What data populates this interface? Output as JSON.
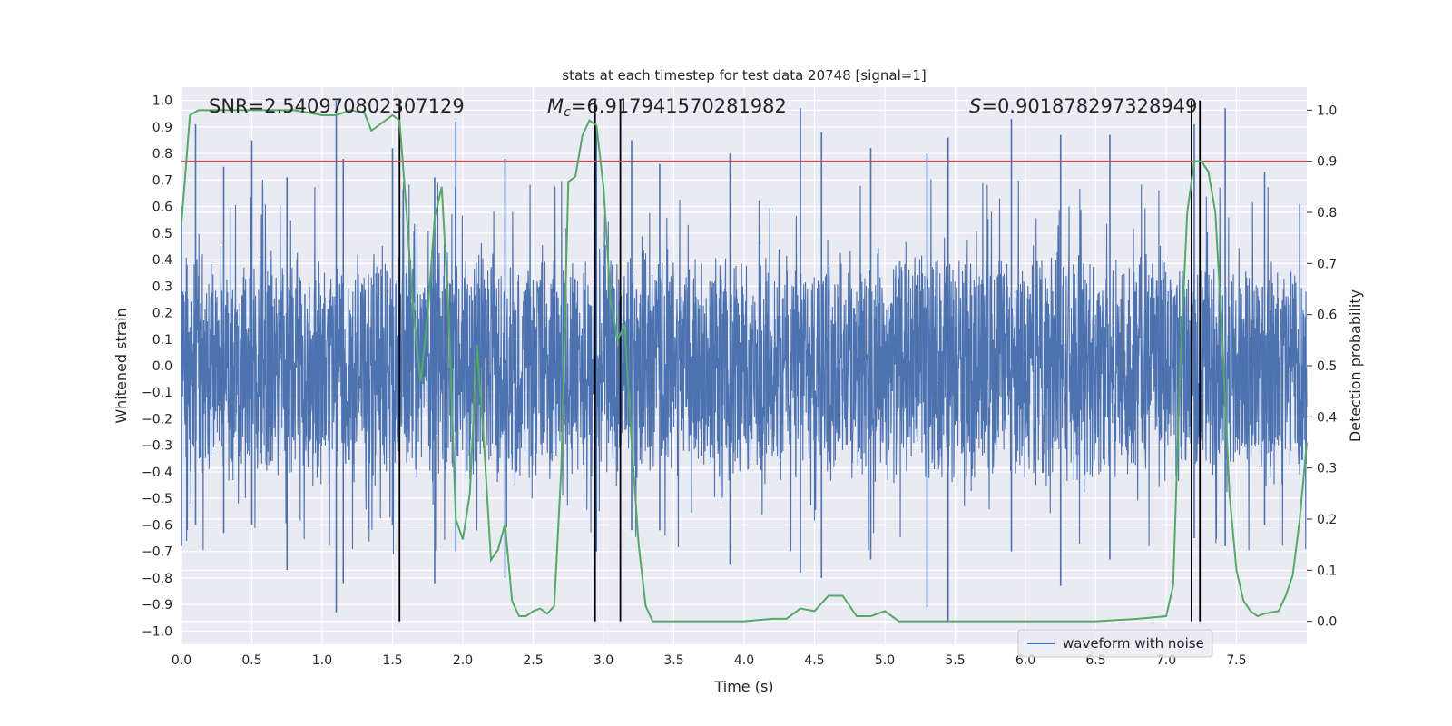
{
  "chart_data": {
    "type": "line",
    "title": "stats at each timestep for test data 20748 [signal=1]",
    "xlabel": "Time (s)",
    "ylabel": "Whitened strain",
    "y2label": "Detection probability",
    "xlim": [
      0.0,
      8.0
    ],
    "ylim": [
      -1.05,
      1.05
    ],
    "y2lim": [
      -0.045,
      1.045
    ],
    "x_ticks": [
      "0.0",
      "0.5",
      "1.0",
      "1.5",
      "2.0",
      "2.5",
      "3.0",
      "3.5",
      "4.0",
      "4.5",
      "5.0",
      "5.5",
      "6.0",
      "6.5",
      "7.0",
      "7.5"
    ],
    "x_tick_values": [
      0.0,
      0.5,
      1.0,
      1.5,
      2.0,
      2.5,
      3.0,
      3.5,
      4.0,
      4.5,
      5.0,
      5.5,
      6.0,
      6.5,
      7.0,
      7.5
    ],
    "y_ticks": [
      "1.0",
      "0.9",
      "0.8",
      "0.7",
      "0.6",
      "0.5",
      "0.4",
      "0.3",
      "0.2",
      "0.1",
      "0.0",
      "−0.1",
      "−0.2",
      "−0.3",
      "−0.4",
      "−0.5",
      "−0.6",
      "−0.7",
      "−0.8",
      "−0.9",
      "−1.0"
    ],
    "y_tick_values": [
      1.0,
      0.9,
      0.8,
      0.7,
      0.6,
      0.5,
      0.4,
      0.3,
      0.2,
      0.1,
      0.0,
      -0.1,
      -0.2,
      -0.3,
      -0.4,
      -0.5,
      -0.6,
      -0.7,
      -0.8,
      -0.9,
      -1.0
    ],
    "y2_ticks": [
      "1.0",
      "0.9",
      "0.8",
      "0.7",
      "0.6",
      "0.5",
      "0.4",
      "0.3",
      "0.2",
      "0.1",
      "0.0"
    ],
    "y2_tick_values": [
      1.0,
      0.9,
      0.8,
      0.7,
      0.6,
      0.5,
      0.4,
      0.3,
      0.2,
      0.1,
      0.0
    ],
    "annotations": {
      "snr": "SNR=2.540970802307129",
      "mc_symbol": "M",
      "mc_sub": "c",
      "mc_value": "=6.917941570281982",
      "s_symbol": "S",
      "s_value": "=0.901878297328949"
    },
    "legend": {
      "placement": "lower-right",
      "entries": [
        "waveform with noise"
      ]
    },
    "grid": true,
    "series": [
      {
        "name": "waveform with noise",
        "axis": "left",
        "color": "#4c72b0",
        "description_note": null,
        "envelope_peaks": [
          [
            0.0,
            0.6,
            -0.68
          ],
          [
            0.1,
            0.91,
            -0.6
          ],
          [
            0.3,
            0.75,
            -0.63
          ],
          [
            0.5,
            0.85,
            -0.6
          ],
          [
            0.75,
            0.71,
            -0.77
          ],
          [
            1.1,
            1.0,
            -0.93
          ],
          [
            1.15,
            0.78,
            -0.82
          ],
          [
            1.5,
            0.82,
            -0.6
          ],
          [
            1.8,
            0.71,
            -0.82
          ],
          [
            1.95,
            0.92,
            -0.7
          ],
          [
            2.3,
            0.78,
            -0.8
          ],
          [
            2.95,
            0.9,
            -0.7
          ],
          [
            3.2,
            0.85,
            -0.62
          ],
          [
            3.4,
            0.76,
            -0.62
          ],
          [
            3.9,
            0.8,
            -0.75
          ],
          [
            4.4,
            0.97,
            -0.78
          ],
          [
            4.55,
            0.88,
            -0.8
          ],
          [
            4.9,
            0.82,
            -0.73
          ],
          [
            5.3,
            0.8,
            -0.91
          ],
          [
            5.45,
            0.86,
            -0.96
          ],
          [
            5.9,
            0.93,
            -0.7
          ],
          [
            6.25,
            0.87,
            -0.83
          ],
          [
            6.6,
            0.87,
            -0.73
          ],
          [
            7.2,
            0.91,
            -0.65
          ],
          [
            7.42,
            0.97,
            -0.68
          ],
          [
            7.7,
            0.73,
            -0.6
          ],
          [
            7.95,
            0.61,
            -0.41
          ]
        ],
        "typical_amplitude": 0.42
      },
      {
        "name": "",
        "axis": "right",
        "color": "#55a868",
        "x": [
          0.0,
          0.06,
          0.12,
          0.2,
          0.4,
          0.6,
          0.8,
          0.9,
          1.0,
          1.1,
          1.15,
          1.2,
          1.3,
          1.35,
          1.4,
          1.5,
          1.55,
          1.6,
          1.65,
          1.7,
          1.75,
          1.8,
          1.85,
          1.9,
          1.95,
          2.0,
          2.05,
          2.1,
          2.15,
          2.2,
          2.25,
          2.3,
          2.35,
          2.4,
          2.45,
          2.5,
          2.55,
          2.6,
          2.65,
          2.7,
          2.75,
          2.8,
          2.85,
          2.9,
          2.95,
          3.0,
          3.05,
          3.1,
          3.15,
          3.2,
          3.25,
          3.3,
          3.35,
          3.4,
          3.45,
          3.5,
          3.6,
          3.8,
          4.0,
          4.2,
          4.3,
          4.4,
          4.5,
          4.6,
          4.7,
          4.8,
          4.9,
          5.0,
          5.1,
          5.2,
          5.5,
          6.0,
          6.5,
          6.8,
          7.0,
          7.05,
          7.1,
          7.15,
          7.2,
          7.25,
          7.3,
          7.35,
          7.4,
          7.45,
          7.5,
          7.55,
          7.6,
          7.65,
          7.7,
          7.8,
          7.85,
          7.9,
          7.95,
          8.0
        ],
        "values": [
          0.78,
          0.99,
          1.0,
          1.0,
          1.0,
          1.0,
          1.0,
          0.995,
          0.99,
          0.99,
          0.995,
          1.0,
          0.995,
          0.96,
          0.97,
          0.99,
          0.98,
          0.8,
          0.6,
          0.47,
          0.6,
          0.79,
          0.85,
          0.6,
          0.2,
          0.16,
          0.25,
          0.54,
          0.35,
          0.12,
          0.14,
          0.19,
          0.04,
          0.01,
          0.01,
          0.02,
          0.025,
          0.015,
          0.03,
          0.3,
          0.86,
          0.87,
          0.95,
          0.98,
          0.97,
          0.85,
          0.63,
          0.55,
          0.58,
          0.35,
          0.15,
          0.03,
          0.0,
          0.0,
          0.0,
          0.0,
          0.0,
          0.0,
          0.0,
          0.005,
          0.005,
          0.025,
          0.02,
          0.05,
          0.05,
          0.01,
          0.01,
          0.02,
          0.0,
          0.0,
          0.0,
          0.0,
          0.0,
          0.005,
          0.01,
          0.07,
          0.5,
          0.8,
          0.9,
          0.9,
          0.88,
          0.8,
          0.55,
          0.25,
          0.1,
          0.04,
          0.02,
          0.01,
          0.015,
          0.02,
          0.05,
          0.09,
          0.2,
          0.35
        ]
      }
    ],
    "threshold_line": {
      "axis": "right",
      "value": 0.9,
      "color": "#c44e52"
    },
    "vertical_markers": {
      "x": [
        1.55,
        2.94,
        3.12,
        7.18,
        7.24
      ],
      "color": "#000000"
    }
  }
}
